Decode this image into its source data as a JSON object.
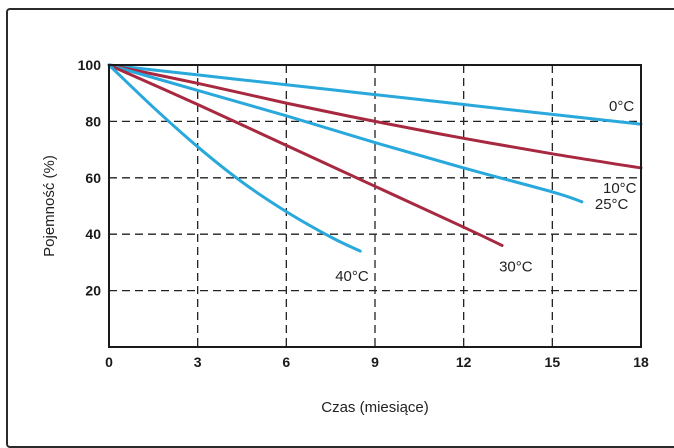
{
  "chart_data": {
    "type": "line",
    "xlabel": "Czas (miesiące)",
    "ylabel": "Pojemność (%)",
    "xlim": [
      0,
      18
    ],
    "ylim": [
      0,
      100
    ],
    "xticks": [
      "0",
      "3",
      "6",
      "9",
      "12",
      "15",
      "18"
    ],
    "yticks": [
      "20",
      "40",
      "60",
      "80",
      "100"
    ],
    "grid": true,
    "series": [
      {
        "name": "0°C",
        "color": "#29a8dc",
        "x": [
          0,
          3,
          6,
          9,
          12,
          15,
          18
        ],
        "y": [
          100,
          96.5,
          93,
          89.5,
          86,
          82.5,
          79
        ]
      },
      {
        "name": "10°C",
        "color": "#a8283f",
        "x": [
          0,
          3,
          6,
          9,
          12,
          15,
          18
        ],
        "y": [
          100,
          93.5,
          86.5,
          80,
          74,
          68.5,
          63.5
        ]
      },
      {
        "name": "25°C",
        "color": "#29a8dc",
        "x": [
          0,
          3,
          6,
          9,
          12,
          15,
          16
        ],
        "y": [
          100,
          91,
          82,
          72.5,
          63.5,
          55,
          51.5
        ]
      },
      {
        "name": "30°C",
        "color": "#a8283f",
        "x": [
          0,
          3,
          6,
          9,
          12,
          13.3
        ],
        "y": [
          100,
          86,
          71.5,
          57,
          42.5,
          36
        ]
      },
      {
        "name": "40°C",
        "color": "#29a8dc",
        "x": [
          0,
          1.5,
          3,
          4.5,
          6,
          7.5,
          8.5
        ],
        "y": [
          100,
          85,
          71,
          58.5,
          48,
          39,
          34
        ]
      }
    ]
  }
}
